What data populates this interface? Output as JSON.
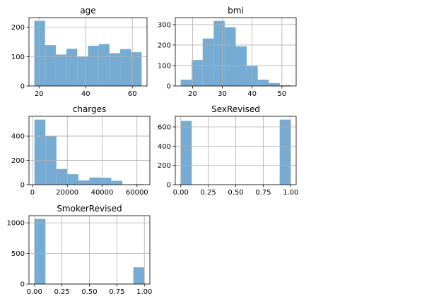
{
  "figure": {
    "grid": true,
    "bar_color": "#76acd3"
  },
  "chart_data": [
    {
      "type": "bar",
      "title": "age",
      "bin_edges": [
        18,
        22.6,
        27.2,
        31.8,
        36.4,
        41,
        45.6,
        50.2,
        54.8,
        59.4,
        64
      ],
      "values": [
        222,
        139,
        107,
        127,
        100,
        137,
        143,
        112,
        126,
        115
      ],
      "xlim": [
        15.7,
        66.3
      ],
      "ylim": [
        0,
        233
      ],
      "xticks": [
        20,
        40,
        60
      ],
      "xtick_labels": [
        "20",
        "40",
        "60"
      ],
      "yticks": [
        0,
        100,
        200
      ],
      "ytick_labels": [
        "0",
        "100",
        "200"
      ],
      "grid": true
    },
    {
      "type": "bar",
      "title": "bmi",
      "bin_edges": [
        16,
        19.7,
        23.4,
        27.1,
        30.8,
        34.5,
        38.2,
        41.9,
        45.6,
        49.3,
        53
      ],
      "values": [
        31,
        127,
        232,
        318,
        287,
        194,
        97,
        31,
        14,
        4
      ],
      "xlim": [
        14.2,
        54.8
      ],
      "ylim": [
        0,
        334
      ],
      "xticks": [
        20,
        30,
        40,
        50
      ],
      "xtick_labels": [
        "20",
        "30",
        "40",
        "50"
      ],
      "yticks": [
        0,
        100,
        200,
        300
      ],
      "ytick_labels": [
        "0",
        "100",
        "200",
        "300"
      ],
      "grid": true
    },
    {
      "type": "bar",
      "title": "charges",
      "bin_edges": [
        1122,
        7434,
        13746,
        20058,
        26370,
        32682,
        38994,
        45306,
        51618,
        57930,
        64242
      ],
      "values": [
        536,
        398,
        129,
        86,
        35,
        59,
        57,
        32,
        2,
        4
      ],
      "xlim": [
        -2000,
        67400
      ],
      "ylim": [
        0,
        563
      ],
      "xticks": [
        0,
        20000,
        40000,
        60000
      ],
      "xtick_labels": [
        "0",
        "20000",
        "40000",
        "60000"
      ],
      "yticks": [
        0,
        200,
        400
      ],
      "ytick_labels": [
        "0",
        "200",
        "400"
      ],
      "grid": true
    },
    {
      "type": "bar",
      "title": "SexRevised",
      "bin_edges": [
        0,
        0.1,
        0.2,
        0.3,
        0.4,
        0.5,
        0.6,
        0.7,
        0.8,
        0.9,
        1.0
      ],
      "values": [
        662,
        0,
        0,
        0,
        0,
        0,
        0,
        0,
        0,
        676
      ],
      "xlim": [
        -0.05,
        1.05
      ],
      "ylim": [
        0,
        710
      ],
      "xticks": [
        0,
        0.25,
        0.5,
        0.75,
        1.0
      ],
      "xtick_labels": [
        "0.00",
        "0.25",
        "0.50",
        "0.75",
        "1.00"
      ],
      "yticks": [
        0,
        200,
        400,
        600
      ],
      "ytick_labels": [
        "0",
        "200",
        "400",
        "600"
      ],
      "grid": true
    },
    {
      "type": "bar",
      "title": "SmokerRevised",
      "bin_edges": [
        0,
        0.1,
        0.2,
        0.3,
        0.4,
        0.5,
        0.6,
        0.7,
        0.8,
        0.9,
        1.0
      ],
      "values": [
        1064,
        0,
        0,
        0,
        0,
        0,
        0,
        0,
        0,
        274
      ],
      "xlim": [
        -0.05,
        1.05
      ],
      "ylim": [
        0,
        1117
      ],
      "xticks": [
        0,
        0.25,
        0.5,
        0.75,
        1.0
      ],
      "xtick_labels": [
        "0.00",
        "0.25",
        "0.50",
        "0.75",
        "1.00"
      ],
      "yticks": [
        0,
        500,
        1000
      ],
      "ytick_labels": [
        "0",
        "500",
        "1000"
      ],
      "grid": true
    }
  ]
}
